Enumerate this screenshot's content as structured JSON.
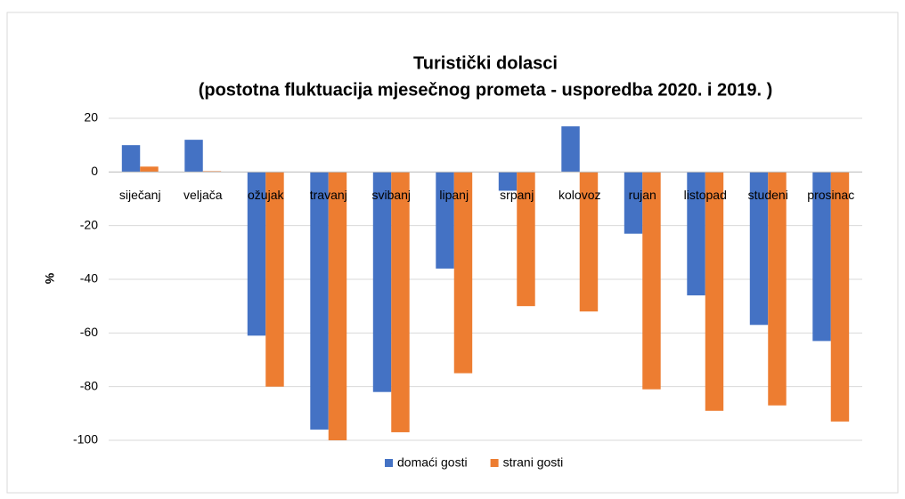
{
  "chart_data": {
    "type": "bar",
    "title": "Turistički dolasci",
    "subtitle": "(postotna fluktuacija mjesečnog prometa - usporedba 2020. i 2019. )",
    "y_label": "%",
    "categories": [
      "siječanj",
      "veljača",
      "ožujak",
      "travanj",
      "svibanj",
      "lipanj",
      "srpanj",
      "kolovoz",
      "rujan",
      "listopad",
      "studeni",
      "prosinac"
    ],
    "series": [
      {
        "name": "domaći gosti",
        "color": "#4472c4",
        "values": [
          10,
          12,
          -61,
          -96,
          -82,
          -36,
          -7,
          17,
          -23,
          -46,
          -57,
          -63
        ]
      },
      {
        "name": "strani gosti",
        "color": "#ed7d31",
        "values": [
          2,
          0.3,
          -80,
          -100,
          -97,
          -75,
          -50,
          -52,
          -81,
          -89,
          -87,
          -93
        ]
      }
    ],
    "ylim": [
      -100,
      20
    ],
    "yticks": [
      20,
      0,
      -20,
      -40,
      -60,
      -80,
      -100
    ],
    "grid": true,
    "legend": "bottom"
  }
}
